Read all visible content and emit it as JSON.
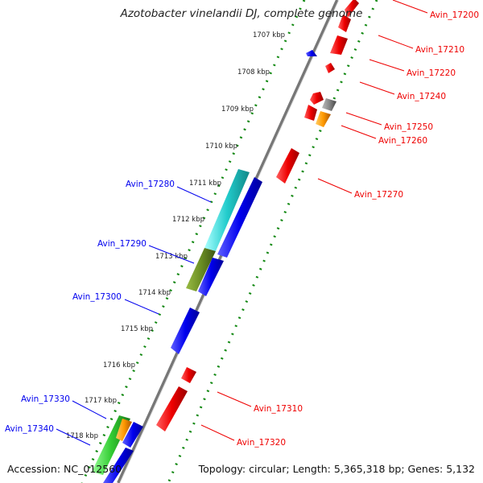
{
  "title": "Azotobacter vinelandii DJ, complete genome",
  "accession_text": "Accession: NC_012560",
  "topology_text": "Topology: circular; Length: 5,365,318 bp; Genes: 5,132",
  "colors": {
    "forward": "#ee0000",
    "reverse": "#0000ee",
    "backbone": "#777777",
    "inner_ticks": "#118811",
    "outer_ticks": "#118811"
  },
  "ruler": [
    {
      "label": "1707 kbp"
    },
    {
      "label": "1708 kbp"
    },
    {
      "label": "1709 kbp"
    },
    {
      "label": "1710 kbp"
    },
    {
      "label": "1711 kbp"
    },
    {
      "label": "1712 kbp"
    },
    {
      "label": "1713 kbp"
    },
    {
      "label": "1714 kbp"
    },
    {
      "label": "1715 kbp"
    },
    {
      "label": "1716 kbp"
    },
    {
      "label": "1717 kbp"
    },
    {
      "label": "1718 kbp"
    }
  ],
  "forward_labels": [
    {
      "label": "Avin_17200"
    },
    {
      "label": "Avin_17210"
    },
    {
      "label": "Avin_17220"
    },
    {
      "label": "Avin_17240"
    },
    {
      "label": "Avin_17250"
    },
    {
      "label": "Avin_17260"
    },
    {
      "label": "Avin_17270"
    },
    {
      "label": "Avin_17310"
    },
    {
      "label": "Avin_17320"
    }
  ],
  "reverse_labels": [
    {
      "label": "Avin_17280"
    },
    {
      "label": "Avin_17290"
    },
    {
      "label": "Avin_17300"
    },
    {
      "label": "Avin_17330"
    },
    {
      "label": "Avin_17340"
    }
  ]
}
